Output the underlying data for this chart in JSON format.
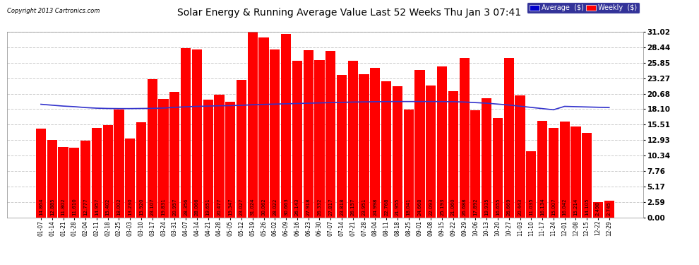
{
  "title": "Solar Energy & Running Average Value Last 52 Weeks Thu Jan 3 07:41",
  "copyright": "Copyright 2013 Cartronics.com",
  "bar_color": "#ff0000",
  "avg_line_color": "#3333cc",
  "background_color": "#ffffff",
  "plot_bg_color": "#ffffff",
  "grid_color": "#cccccc",
  "yticks": [
    0.0,
    2.59,
    5.17,
    7.76,
    10.34,
    12.93,
    15.51,
    18.1,
    20.68,
    23.27,
    25.85,
    28.44,
    31.02
  ],
  "legend_avg_color": "#0000cc",
  "legend_weekly_color": "#ff0000",
  "legend_bg_color": "#000080",
  "categories": [
    "01-07",
    "01-14",
    "01-21",
    "01-28",
    "02-04",
    "02-11",
    "02-18",
    "02-25",
    "03-03",
    "03-10",
    "03-17",
    "03-24",
    "03-31",
    "04-07",
    "04-14",
    "04-21",
    "04-28",
    "05-05",
    "05-12",
    "05-19",
    "05-26",
    "06-02",
    "06-09",
    "06-16",
    "06-23",
    "06-30",
    "07-07",
    "07-14",
    "07-21",
    "07-28",
    "08-04",
    "08-11",
    "08-18",
    "08-25",
    "09-01",
    "09-08",
    "09-15",
    "09-22",
    "09-29",
    "10-06",
    "10-13",
    "10-20",
    "10-27",
    "11-03",
    "11-10",
    "11-17",
    "11-24",
    "12-01",
    "12-08",
    "12-15",
    "12-22",
    "12-29"
  ],
  "values": [
    14.864,
    12.885,
    11.802,
    11.61,
    12.777,
    14.957,
    15.402,
    18.002,
    13.23,
    15.92,
    23.107,
    19.831,
    20.957,
    28.356,
    28.066,
    19.651,
    20.477,
    19.347,
    23.027,
    31.024,
    30.062,
    28.022,
    30.663,
    26.143,
    27.918,
    26.332,
    27.817,
    23.818,
    26.157,
    23.951,
    24.998,
    22.768,
    21.955,
    18.041,
    24.668,
    22.093,
    25.193,
    21.06,
    26.688,
    17.892,
    19.935,
    16.655,
    26.669,
    20.443,
    11.035,
    16.134,
    15.007,
    16.042,
    15.214,
    14.105,
    2.498,
    2.745
  ],
  "avg_values": [
    18.9,
    18.75,
    18.6,
    18.5,
    18.35,
    18.25,
    18.2,
    18.18,
    18.18,
    18.2,
    18.22,
    18.27,
    18.38,
    18.48,
    18.55,
    18.6,
    18.65,
    18.68,
    18.73,
    18.82,
    18.88,
    18.93,
    18.98,
    19.03,
    19.08,
    19.13,
    19.18,
    19.22,
    19.27,
    19.3,
    19.33,
    19.35,
    19.36,
    19.36,
    19.36,
    19.36,
    19.35,
    19.33,
    19.28,
    19.18,
    19.08,
    18.93,
    18.78,
    18.58,
    18.38,
    18.18,
    17.98,
    18.55,
    18.5,
    18.45,
    18.4,
    18.35
  ],
  "ylim": [
    0.0,
    31.02
  ],
  "figsize": [
    9.9,
    3.75
  ],
  "dpi": 100,
  "label_fontsize": 5.0,
  "xtick_fontsize": 5.5,
  "ytick_fontsize": 7.5
}
